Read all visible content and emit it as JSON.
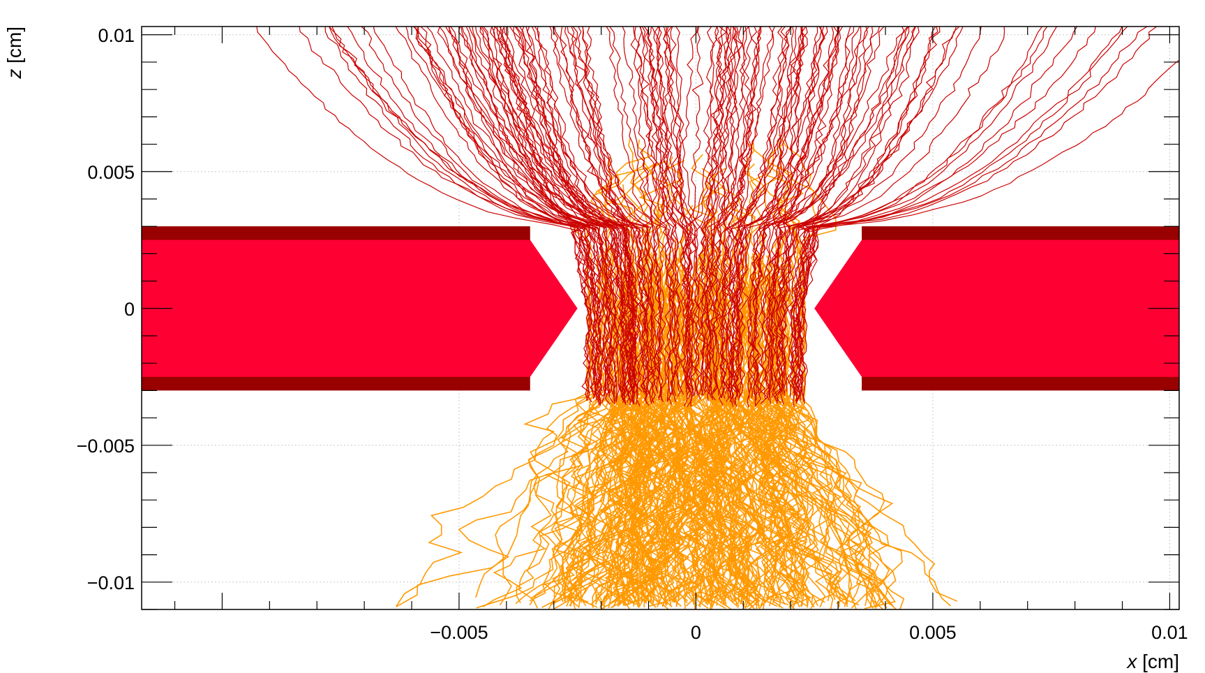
{
  "chart_data": {
    "type": "scatter",
    "title": "",
    "xlabel_var": "x",
    "xlabel_unit": "[cm]",
    "ylabel_var": "z",
    "ylabel_unit": "[cm]",
    "xlim": [
      -0.0117,
      0.0102
    ],
    "ylim": [
      -0.011,
      0.0103
    ],
    "x_ticks": [
      {
        "value": -0.005,
        "label": "−0.005"
      },
      {
        "value": 0,
        "label": "0"
      },
      {
        "value": 0.005,
        "label": "0.005"
      },
      {
        "value": 0.01,
        "label": "0.01"
      }
    ],
    "y_ticks": [
      {
        "value": 0.01,
        "label": "0.01"
      },
      {
        "value": 0.005,
        "label": "0.005"
      },
      {
        "value": 0,
        "label": "0"
      },
      {
        "value": -0.005,
        "label": "−0.005"
      },
      {
        "value": -0.01,
        "label": "−0.01"
      }
    ],
    "grid": true,
    "colors": {
      "electron_tracks": "#cc0000",
      "ion_tracks": "#ff9900",
      "copper_layer": "#990000",
      "dielectric": "#ff0033",
      "grid": "#c8c8c8"
    },
    "geometry": {
      "dielectric_half_thickness": 0.0025,
      "copper_outer_z": 0.003,
      "hole_outer_radius": 0.0035,
      "hole_inner_radius": 0.0025
    },
    "series": [
      {
        "role": "electron drift lines",
        "color": "#cc0000"
      },
      {
        "role": "ion drift lines",
        "color": "#ff9900"
      }
    ]
  }
}
